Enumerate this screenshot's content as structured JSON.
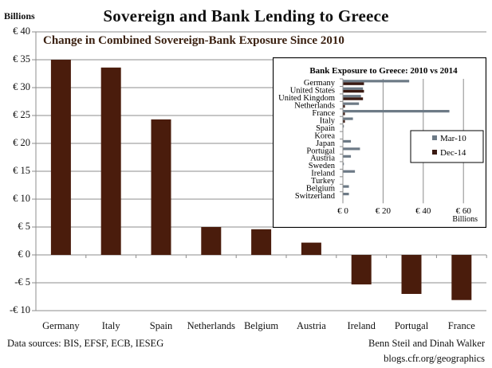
{
  "header": {
    "title": "Sovereign and Bank Lending to Greece",
    "y_unit": "Billions",
    "subtitle": "Change in Combined Sovereign-Bank Exposure Since 2010"
  },
  "footer": {
    "sources": "Data sources: BIS, EFSF, ECB, IESEG",
    "authors": "Benn Steil and Dinah Walker",
    "site": "blogs.cfr.org/geographics"
  },
  "colors": {
    "main_bar": "#4a1c0c",
    "mar10": "#6d7a86",
    "dec14": "#3a1a12",
    "gridline": "#8c8c8c"
  },
  "chart_data": [
    {
      "type": "bar",
      "title": "Sovereign and Bank Lending to Greece",
      "subtitle": "Change in Combined Sovereign-Bank Exposure Since 2010",
      "ylabel": "Billions",
      "xlabel": "",
      "categories": [
        "Germany",
        "Italy",
        "Spain",
        "Netherlands",
        "Belgium",
        "Austria",
        "Ireland",
        "Portugal",
        "France"
      ],
      "values": [
        35.0,
        33.6,
        24.3,
        5.0,
        4.6,
        2.2,
        -5.3,
        -7.0,
        -8.1
      ],
      "ylim": [
        -10,
        40
      ],
      "yticks": [
        40,
        35,
        30,
        25,
        20,
        15,
        10,
        5,
        0,
        -5,
        -10
      ],
      "ytick_labels": [
        "€ 40",
        "€ 35",
        "€ 30",
        "€ 25",
        "€ 20",
        "€ 15",
        "€ 10",
        "€ 5",
        "€ 0",
        "-€ 5",
        "-€ 10"
      ],
      "grid": true
    },
    {
      "type": "bar",
      "orientation": "horizontal",
      "title": "Bank Exposure to Greece: 2010 vs 2014",
      "xlabel": "Billions",
      "categories": [
        "Germany",
        "United States",
        "United Kingdom",
        "Netherlands",
        "France",
        "Italy",
        "Spain",
        "Korea",
        "Japan",
        "Portugal",
        "Austria",
        "Sweden",
        "Ireland",
        "Turkey",
        "Belgium",
        "Switzerland"
      ],
      "series": [
        {
          "name": "Mar-10",
          "values": [
            33,
            10,
            9,
            8,
            53,
            5,
            0.5,
            0,
            4,
            8.5,
            4,
            0.5,
            6,
            0,
            3,
            3
          ]
        },
        {
          "name": "Dec-14",
          "values": [
            10.5,
            10.5,
            10,
            1,
            1,
            1,
            0,
            0,
            0,
            0,
            0,
            0,
            0,
            0,
            0,
            0
          ]
        }
      ],
      "xlim": [
        0,
        60
      ],
      "xticks": [
        0,
        20,
        40,
        60
      ],
      "xtick_labels": [
        "€ 0",
        "€ 20",
        "€ 40",
        "€ 60"
      ],
      "legend": {
        "position": "right-middle",
        "entries": [
          "Mar-10",
          "Dec-14"
        ]
      },
      "grid": true
    }
  ]
}
